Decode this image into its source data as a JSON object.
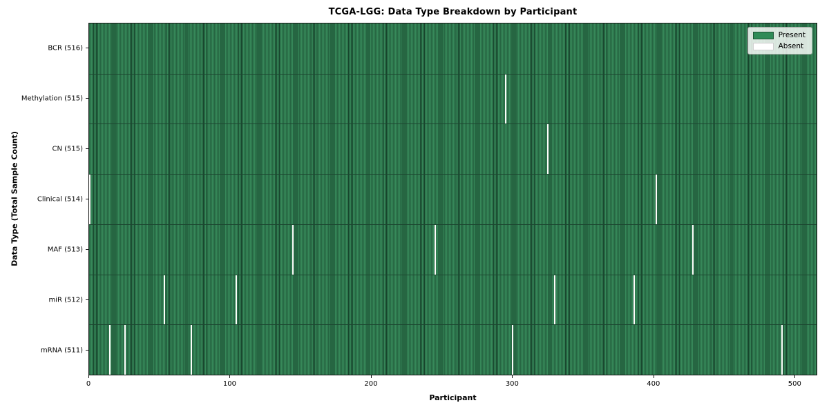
{
  "chart_data": {
    "type": "heatmap",
    "title": "TCGA-LGG: Data Type Breakdown by Participant",
    "xlabel": "Participant",
    "ylabel": "Data Type (Total Sample Count)",
    "x_range": [
      0,
      516
    ],
    "x_ticks": [
      0,
      100,
      200,
      300,
      400,
      500
    ],
    "grid": false,
    "legend_position": "upper right",
    "legend": [
      "Present",
      "Absent"
    ],
    "colors": {
      "present_fill": "#37895a",
      "present_edge": "#16432b",
      "absent_fill": "#fdfdfb",
      "row_separator": "#1c4630"
    },
    "total_participants": 516,
    "rows": [
      {
        "label": "BCR (516)",
        "data_type": "BCR",
        "present_count": 516,
        "absent_participants": []
      },
      {
        "label": "Methylation (515)",
        "data_type": "Methylation",
        "present_count": 515,
        "absent_participants": [
          295
        ]
      },
      {
        "label": "CN (515)",
        "data_type": "CN",
        "present_count": 515,
        "absent_participants": [
          325
        ]
      },
      {
        "label": "Clinical (514)",
        "data_type": "Clinical",
        "present_count": 514,
        "absent_participants": [
          0,
          402
        ]
      },
      {
        "label": "MAF (513)",
        "data_type": "MAF",
        "present_count": 513,
        "absent_participants": [
          144,
          245,
          428
        ]
      },
      {
        "label": "miR (512)",
        "data_type": "miR",
        "present_count": 512,
        "absent_participants": [
          53,
          104,
          330,
          386
        ]
      },
      {
        "label": "mRNA (511)",
        "data_type": "mRNA",
        "present_count": 511,
        "absent_participants": [
          14,
          25,
          72,
          300,
          491
        ]
      }
    ]
  }
}
